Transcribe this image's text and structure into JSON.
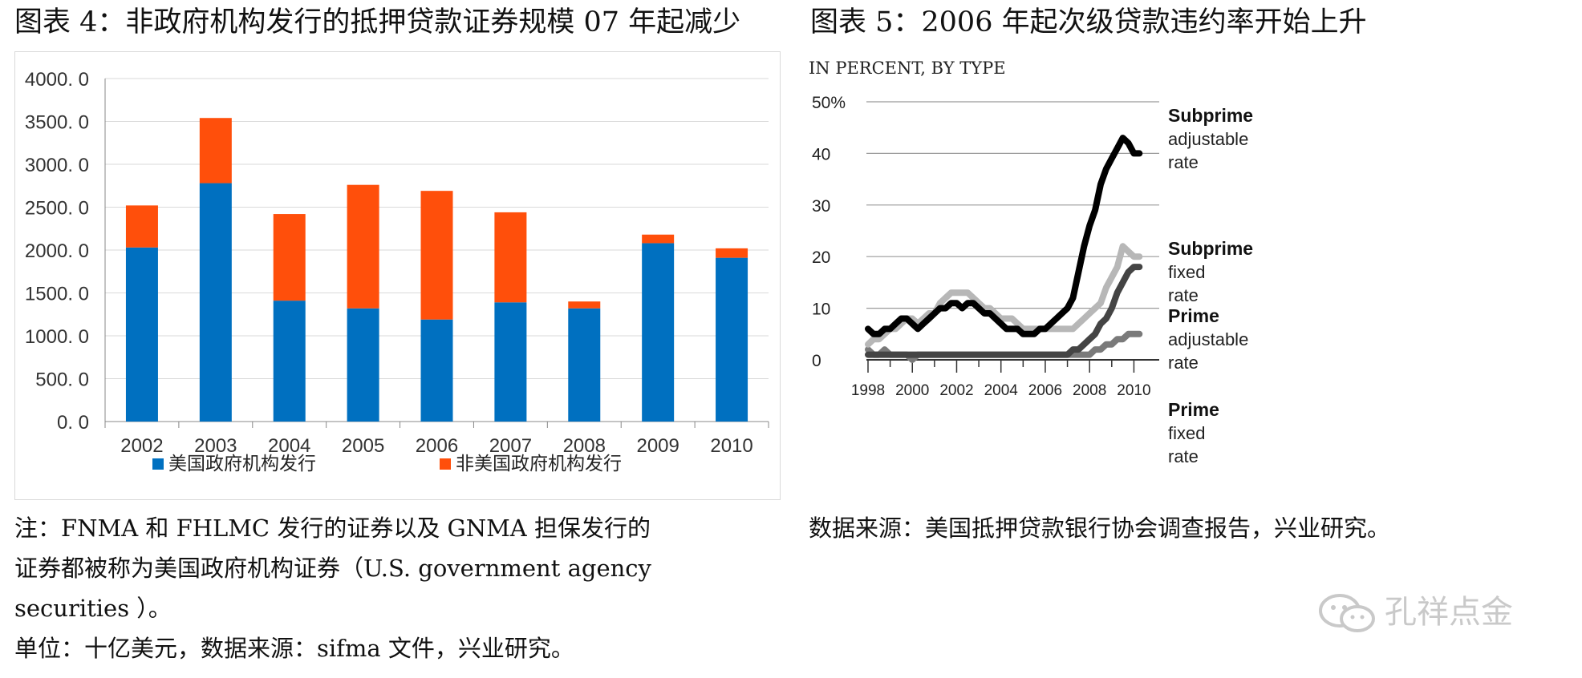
{
  "header": {
    "title_left": "图表 4：非政府机构发行的抵押贷款证券规模 07 年起减少",
    "title_right": "图表 5：2006 年起次级贷款违约率开始上升"
  },
  "colors": {
    "blue": "#0070c0",
    "orange": "#ff4f0b",
    "subprime_adj": "#000000",
    "subprime_fixed": "#b7b7b7",
    "prime_adj": "#444444",
    "prime_fixed": "#7a7a7a"
  },
  "chart_data": [
    {
      "type": "bar",
      "stacked": true,
      "categories": [
        "2002",
        "2003",
        "2004",
        "2005",
        "2006",
        "2007",
        "2008",
        "2009",
        "2010"
      ],
      "series": [
        {
          "name": "美国政府机构发行",
          "color": "#0070c0",
          "values": [
            2030,
            2780,
            1410,
            1320,
            1190,
            1390,
            1320,
            2080,
            1910
          ]
        },
        {
          "name": "非美国政府机构发行",
          "color": "#ff4f0b",
          "values": [
            490,
            760,
            1010,
            1440,
            1500,
            1050,
            80,
            100,
            110
          ]
        }
      ],
      "yticks": [
        "4000. 0",
        "3500. 0",
        "3000. 0",
        "2500. 0",
        "2000. 0",
        "1500. 0",
        "1000. 0",
        "500. 0",
        "0. 0"
      ],
      "ylim": [
        0,
        4000
      ],
      "grid": true,
      "legend_position": "bottom"
    },
    {
      "type": "line",
      "subtitle": "IN PERCENT, BY TYPE",
      "x_ticks": [
        "1998",
        "2000",
        "2002",
        "2004",
        "2006",
        "2008",
        "2010"
      ],
      "y_ticks": [
        "50%",
        "40",
        "30",
        "20",
        "10",
        "0"
      ],
      "xlim": [
        1998,
        2010.6
      ],
      "ylim": [
        0,
        50
      ],
      "grid": true,
      "legend_position": "right",
      "series": [
        {
          "name": "Subprime adjustable rate",
          "label_bold": "Subprime",
          "label_rest": [
            "adjustable",
            "rate"
          ],
          "color": "#000000",
          "x": [
            1998,
            1998.25,
            1998.5,
            1998.75,
            1999,
            1999.25,
            1999.5,
            1999.75,
            2000,
            2000.25,
            2000.5,
            2000.75,
            2001,
            2001.25,
            2001.5,
            2001.75,
            2002,
            2002.25,
            2002.5,
            2002.75,
            2003,
            2003.25,
            2003.5,
            2003.75,
            2004,
            2004.25,
            2004.5,
            2004.75,
            2005,
            2005.25,
            2005.5,
            2005.75,
            2006,
            2006.25,
            2006.5,
            2006.75,
            2007,
            2007.25,
            2007.5,
            2007.75,
            2008,
            2008.25,
            2008.5,
            2008.75,
            2009,
            2009.25,
            2009.5,
            2009.75,
            2010,
            2010.25
          ],
          "y": [
            6,
            5,
            5,
            6,
            6,
            7,
            8,
            8,
            7,
            6,
            7,
            8,
            9,
            10,
            10,
            11,
            11,
            10,
            11,
            11,
            10,
            9,
            9,
            8,
            7,
            6,
            6,
            6,
            5,
            5,
            5,
            6,
            6,
            7,
            8,
            9,
            10,
            12,
            17,
            22,
            26,
            29,
            34,
            37,
            39,
            41,
            43,
            42,
            40,
            40
          ]
        },
        {
          "name": "Subprime fixed rate",
          "label_bold": "Subprime",
          "label_rest": [
            "fixed",
            "rate"
          ],
          "color": "#b7b7b7",
          "x": [
            1998,
            1998.25,
            1998.5,
            1998.75,
            1999,
            1999.25,
            1999.5,
            1999.75,
            2000,
            2000.25,
            2000.5,
            2000.75,
            2001,
            2001.25,
            2001.5,
            2001.75,
            2002,
            2002.25,
            2002.5,
            2002.75,
            2003,
            2003.25,
            2003.5,
            2003.75,
            2004,
            2004.25,
            2004.5,
            2004.75,
            2005,
            2005.25,
            2005.5,
            2005.75,
            2006,
            2006.25,
            2006.5,
            2006.75,
            2007,
            2007.25,
            2007.5,
            2007.75,
            2008,
            2008.25,
            2008.5,
            2008.75,
            2009,
            2009.25,
            2009.5,
            2009.75,
            2010,
            2010.25
          ],
          "y": [
            3,
            4,
            4,
            5,
            6,
            6,
            7,
            8,
            8,
            7,
            8,
            9,
            9,
            11,
            12,
            13,
            13,
            13,
            13,
            12,
            11,
            10,
            10,
            9,
            8,
            8,
            8,
            7,
            6,
            6,
            6,
            6,
            6,
            6,
            6,
            6,
            6,
            6,
            7,
            8,
            9,
            10,
            11,
            14,
            16,
            18,
            22,
            21,
            20,
            20
          ]
        },
        {
          "name": "Prime adjustable rate",
          "label_bold": "Prime",
          "label_rest": [
            "adjustable",
            "rate"
          ],
          "color": "#444444",
          "x": [
            1998,
            1998.25,
            1998.5,
            1998.75,
            1999,
            1999.25,
            1999.5,
            1999.75,
            2000,
            2000.25,
            2000.5,
            2000.75,
            2001,
            2001.25,
            2001.5,
            2001.75,
            2002,
            2002.25,
            2002.5,
            2002.75,
            2003,
            2003.25,
            2003.5,
            2003.75,
            2004,
            2004.25,
            2004.5,
            2004.75,
            2005,
            2005.25,
            2005.5,
            2005.75,
            2006,
            2006.25,
            2006.5,
            2006.75,
            2007,
            2007.25,
            2007.5,
            2007.75,
            2008,
            2008.25,
            2008.5,
            2008.75,
            2009,
            2009.25,
            2009.5,
            2009.75,
            2010,
            2010.25
          ],
          "y": [
            1,
            1,
            1,
            1,
            1,
            1,
            1,
            1,
            1,
            1,
            1,
            1,
            1,
            1,
            1,
            1,
            1,
            1,
            1,
            1,
            1,
            1,
            1,
            1,
            1,
            1,
            1,
            1,
            1,
            1,
            1,
            1,
            1,
            1,
            1,
            1,
            1,
            2,
            2,
            3,
            4,
            5,
            7,
            8,
            10,
            13,
            15,
            17,
            18,
            18
          ]
        },
        {
          "name": "Prime fixed rate",
          "label_bold": "Prime",
          "label_rest": [
            "fixed",
            "rate"
          ],
          "color": "#7a7a7a",
          "x": [
            1998,
            1998.25,
            1998.5,
            1998.75,
            1999,
            1999.25,
            1999.5,
            1999.75,
            2000,
            2000.25,
            2000.5,
            2000.75,
            2001,
            2001.25,
            2001.5,
            2001.75,
            2002,
            2002.25,
            2002.5,
            2002.75,
            2003,
            2003.25,
            2003.5,
            2003.75,
            2004,
            2004.25,
            2004.5,
            2004.75,
            2005,
            2005.25,
            2005.5,
            2005.75,
            2006,
            2006.25,
            2006.5,
            2006.75,
            2007,
            2007.25,
            2007.5,
            2007.75,
            2008,
            2008.25,
            2008.5,
            2008.75,
            2009,
            2009.25,
            2009.5,
            2009.75,
            2010,
            2010.25
          ],
          "y": [
            2,
            1,
            1,
            2,
            1,
            1,
            1,
            1,
            0,
            1,
            1,
            1,
            1,
            1,
            1,
            1,
            1,
            1,
            1,
            1,
            1,
            1,
            1,
            1,
            1,
            1,
            1,
            1,
            1,
            1,
            1,
            1,
            1,
            1,
            1,
            1,
            1,
            1,
            1,
            1,
            1,
            2,
            2,
            3,
            3,
            4,
            4,
            5,
            5,
            5
          ]
        }
      ]
    }
  ],
  "notes": {
    "left_lines": [
      "注：FNMA  和 FHLMC  发行的证券以及 GNMA  担保发行的",
      "证券都被称为美国政府机构证券（U.S. government agency",
      "securities ）。",
      "单位：十亿美元，数据来源：sifma 文件，兴业研究。"
    ],
    "right_source": "数据来源：美国抵押贷款银行协会调查报告，兴业研究。"
  },
  "watermark": {
    "text": "孔祥点金",
    "icon": "wechat-icon"
  }
}
